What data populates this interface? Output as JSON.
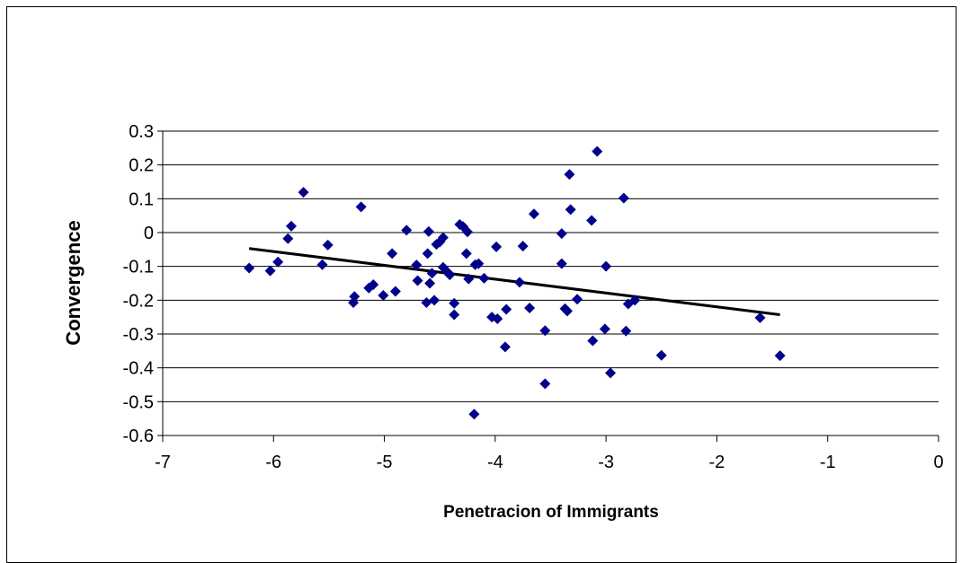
{
  "chart_data": {
    "type": "scatter",
    "title": "",
    "xlabel": "Penetracion of Immigrants",
    "ylabel": "Convergence",
    "xlim": [
      -7,
      0
    ],
    "ylim": [
      -0.6,
      0.3
    ],
    "x_ticks": [
      "-7",
      "-6",
      "-5",
      "-4",
      "-3",
      "-2",
      "-1",
      "0"
    ],
    "y_ticks": [
      "0.3",
      "0.2",
      "0.1",
      "0",
      "-0.1",
      "-0.2",
      "-0.3",
      "-0.4",
      "-0.5",
      "-0.6"
    ],
    "grid": "horizontal",
    "legend": "none",
    "marker": "diamond",
    "colors": {
      "points": "#00008B",
      "trendline": "#000000",
      "grid": "#000000"
    },
    "series": [
      {
        "values": [
          [
            -6.22,
            -0.105
          ],
          [
            -6.03,
            -0.113
          ],
          [
            -5.96,
            -0.087
          ],
          [
            -5.87,
            -0.018
          ],
          [
            -5.84,
            0.019
          ],
          [
            -5.73,
            0.119
          ],
          [
            -5.56,
            -0.095
          ],
          [
            -5.51,
            -0.037
          ],
          [
            -5.28,
            -0.207
          ],
          [
            -5.27,
            -0.189
          ],
          [
            -5.21,
            0.076
          ],
          [
            -5.14,
            -0.164
          ],
          [
            -5.1,
            -0.154
          ],
          [
            -5.01,
            -0.186
          ],
          [
            -4.93,
            -0.062
          ],
          [
            -4.9,
            -0.174
          ],
          [
            -4.8,
            0.007
          ],
          [
            -4.71,
            -0.096
          ],
          [
            -4.7,
            -0.142
          ],
          [
            -4.62,
            -0.207
          ],
          [
            -4.61,
            -0.062
          ],
          [
            -4.6,
            0.003
          ],
          [
            -4.59,
            -0.15
          ],
          [
            -4.57,
            -0.12
          ],
          [
            -4.55,
            -0.2
          ],
          [
            -4.53,
            -0.035
          ],
          [
            -4.5,
            -0.028
          ],
          [
            -4.47,
            -0.015
          ],
          [
            -4.47,
            -0.103
          ],
          [
            -4.43,
            -0.117
          ],
          [
            -4.41,
            -0.125
          ],
          [
            -4.37,
            -0.243
          ],
          [
            -4.37,
            -0.209
          ],
          [
            -4.32,
            0.024
          ],
          [
            -4.29,
            0.018
          ],
          [
            -4.26,
            -0.062
          ],
          [
            -4.25,
            0.002
          ],
          [
            -4.24,
            -0.137
          ],
          [
            -4.19,
            -0.537
          ],
          [
            -4.18,
            -0.095
          ],
          [
            -4.15,
            -0.092
          ],
          [
            -4.1,
            -0.135
          ],
          [
            -4.03,
            -0.25
          ],
          [
            -3.99,
            -0.042
          ],
          [
            -3.98,
            -0.255
          ],
          [
            -3.91,
            -0.338
          ],
          [
            -3.9,
            -0.227
          ],
          [
            -3.78,
            -0.147
          ],
          [
            -3.75,
            -0.04
          ],
          [
            -3.69,
            -0.223
          ],
          [
            -3.65,
            0.055
          ],
          [
            -3.55,
            -0.29
          ],
          [
            -3.55,
            -0.447
          ],
          [
            -3.4,
            -0.092
          ],
          [
            -3.4,
            -0.003
          ],
          [
            -3.37,
            -0.225
          ],
          [
            -3.35,
            -0.232
          ],
          [
            -3.33,
            0.172
          ],
          [
            -3.32,
            0.068
          ],
          [
            -3.26,
            -0.197
          ],
          [
            -3.13,
            0.036
          ],
          [
            -3.12,
            -0.32
          ],
          [
            -3.08,
            0.24
          ],
          [
            -3.01,
            -0.285
          ],
          [
            -3.0,
            -0.1
          ],
          [
            -2.96,
            -0.415
          ],
          [
            -2.84,
            0.102
          ],
          [
            -2.82,
            -0.291
          ],
          [
            -2.8,
            -0.211
          ],
          [
            -2.74,
            -0.2
          ],
          [
            -2.5,
            -0.363
          ],
          [
            -1.61,
            -0.252
          ],
          [
            -1.43,
            -0.364
          ]
        ]
      }
    ],
    "trendline": {
      "type": "linear",
      "x": [
        -6.22,
        -1.43
      ],
      "y": [
        -0.047,
        -0.243
      ]
    }
  }
}
